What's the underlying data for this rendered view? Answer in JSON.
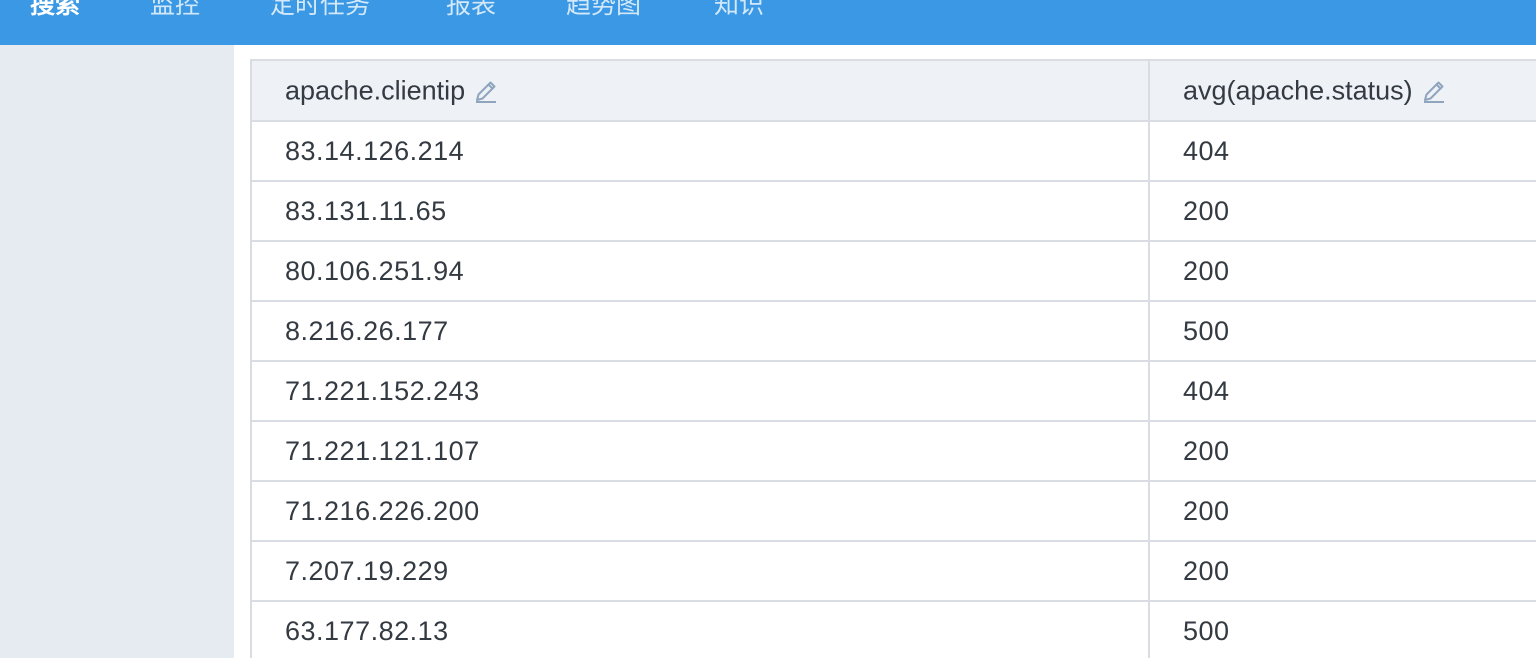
{
  "nav": {
    "items": [
      {
        "label": "搜索",
        "active": true
      },
      {
        "label": "监控",
        "active": false
      },
      {
        "label": "定时任务",
        "active": false
      },
      {
        "label": "报表",
        "active": false
      },
      {
        "label": "趋势图",
        "active": false
      },
      {
        "label": "知识",
        "active": false
      }
    ]
  },
  "table": {
    "columns": [
      {
        "label": "apache.clientip",
        "icon": "edit-icon"
      },
      {
        "label": "avg(apache.status)",
        "icon": "edit-icon"
      }
    ],
    "rows": [
      [
        "83.14.126.214",
        "404"
      ],
      [
        "83.131.11.65",
        "200"
      ],
      [
        "80.106.251.94",
        "200"
      ],
      [
        "8.216.26.177",
        "500"
      ],
      [
        "71.221.152.243",
        "404"
      ],
      [
        "71.221.121.107",
        "200"
      ],
      [
        "71.216.226.200",
        "200"
      ],
      [
        "7.207.19.229",
        "200"
      ],
      [
        "63.177.82.13",
        "500"
      ]
    ]
  },
  "colors": {
    "topbar": "#3a98e4",
    "sidebar": "#e6eaf1",
    "header_bg": "#eef2f7",
    "border": "#d9dde3",
    "text": "#333a41",
    "icon": "#8fa4bd"
  }
}
